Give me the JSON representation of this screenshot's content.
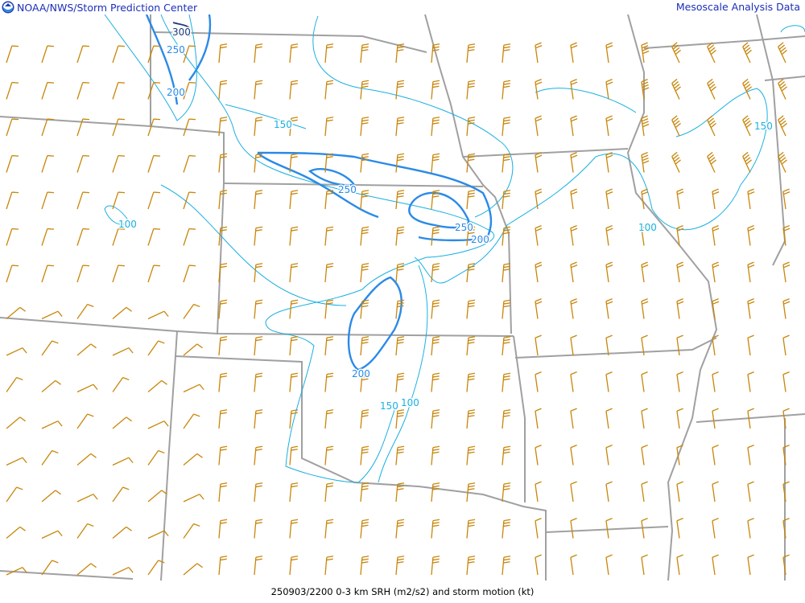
{
  "header": {
    "left_title": "NOAA/NWS/Storm Prediction Center",
    "right_title": "Mesoscale Analysis Data",
    "logo": "noaa-logo"
  },
  "footer": {
    "caption": "250903/2200 0-3 km SRH (m2/s2) and storm motion (kt)"
  },
  "colors": {
    "header_text": "#1b2fb8",
    "borders": "#a0a0a0",
    "contour_thin": "#1ab0e0",
    "contour_thick": "#2a8ae8",
    "contour_300": "#1a3a7a",
    "barbs": "#c8860a"
  },
  "contour_labels": [
    "300",
    "250",
    "200",
    "150",
    "250",
    "250",
    "200",
    "100",
    "100",
    "150",
    "200",
    "150",
    "100"
  ]
}
